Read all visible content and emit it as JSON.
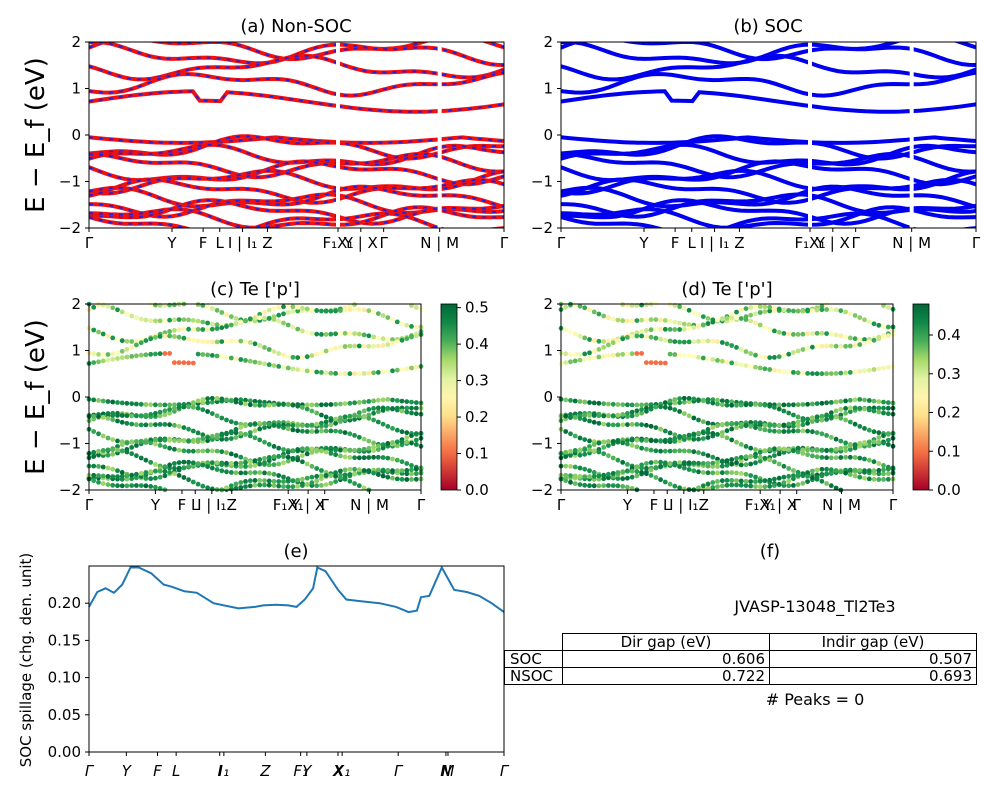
{
  "panels": {
    "a": {
      "title": "(a) Non-SOC"
    },
    "b": {
      "title": "(b) SOC"
    },
    "c": {
      "title": "(c)  Te ['p']"
    },
    "d": {
      "title": "(d) Te ['p']"
    },
    "e": {
      "title": "(e)"
    },
    "f": {
      "title": "(f)"
    }
  },
  "y_axis_label": "E − E_f (eV)",
  "band_ticks": {
    "y": [
      "2",
      "1",
      "0",
      "−1",
      "−2"
    ],
    "kpath_ab": [
      "Γ",
      "Y",
      "F",
      "L",
      "I | I₁",
      "Z",
      "F₁X₁",
      "Y | X",
      "Γ",
      "N | M",
      "Γ"
    ],
    "kpath_cd": [
      "Γ",
      "Y",
      "F",
      "L",
      "I | I₁",
      "Z",
      "F₁X₁",
      "Y | X",
      "Γ",
      "N | M",
      "Γ"
    ]
  },
  "colorbar_c": {
    "ticks": [
      "0.0",
      "0.1",
      "0.2",
      "0.3",
      "0.4",
      "0.5"
    ],
    "max": 0.51
  },
  "colorbar_d": {
    "ticks": [
      "0.0",
      "0.1",
      "0.2",
      "0.3",
      "0.4"
    ],
    "max": 0.48
  },
  "colors": {
    "nonsoc_line": "#ee1111",
    "nonsoc_dash": "#2222dd",
    "soc_line": "#0000ee",
    "spillage_line": "#1f77b4"
  },
  "spillage": {
    "ylabel": "SOC spillage (chg. den. unit)",
    "yticks": [
      "0.20",
      "0.15",
      "0.10",
      "0.05",
      "0.00"
    ],
    "xticks": [
      "Γ",
      "Y",
      "F",
      "L",
      "I",
      "I₁",
      "Z",
      "F₁",
      "Y",
      "X",
      "X₁",
      "Γ",
      "N",
      "M",
      "Γ"
    ]
  },
  "info": {
    "jid": "JVASP-13048_Tl2Te3",
    "peaks": "# Peaks = 0",
    "table": {
      "headers": [
        "Dir gap (eV)",
        "Indir gap (eV)"
      ],
      "rows": [
        {
          "label": "SOC",
          "dir": "0.606",
          "indir": "0.507"
        },
        {
          "label": "NSOC",
          "dir": "0.722",
          "indir": "0.693"
        }
      ]
    }
  },
  "chart_data": [
    {
      "type": "line",
      "panel": "(a) Non-SOC",
      "ylim": [
        -2,
        2
      ],
      "ylabel": "E − E_f (eV)",
      "xticks": [
        "Γ",
        "Y",
        "F",
        "L",
        "I | I₁",
        "Z",
        "F₁X₁",
        "Y | X",
        "Γ",
        "N | M",
        "Γ"
      ],
      "series": [
        {
          "values_at_start": [
            1.88,
            1.75,
            1.45,
            1.1,
            0.75,
            -0.05,
            -0.25,
            -0.45,
            -0.65,
            -0.8,
            -1.0,
            -1.2,
            -1.35,
            -1.5,
            -1.65,
            -1.8,
            -1.9
          ]
        }
      ]
    },
    {
      "type": "line",
      "panel": "(b) SOC",
      "ylim": [
        -2,
        2
      ],
      "xticks": [
        "Γ",
        "Y",
        "F",
        "L",
        "I | I₁",
        "Z",
        "F₁X₁",
        "Y | X",
        "Γ",
        "N | M",
        "Γ"
      ],
      "series": [
        {
          "values_at_start": [
            1.88,
            1.75,
            1.45,
            1.1,
            0.75,
            -0.05,
            -0.25,
            -0.45,
            -0.65,
            -0.8,
            -1.0,
            -1.2,
            -1.35,
            -1.5,
            -1.65,
            -1.8,
            -1.9
          ]
        }
      ]
    },
    {
      "type": "scatter",
      "panel": "(c)  Te ['p']",
      "ylim": [
        -2,
        2
      ],
      "colorbar": [
        0.0,
        0.51
      ]
    },
    {
      "type": "scatter",
      "panel": "(d) Te ['p']",
      "ylim": [
        -2,
        2
      ],
      "colorbar": [
        0.0,
        0.48
      ]
    },
    {
      "type": "line",
      "panel": "(e)",
      "ylabel": "SOC spillage (chg. den. unit)",
      "ylim": [
        0.0,
        0.25
      ],
      "x": [
        0,
        0.02,
        0.04,
        0.06,
        0.08,
        0.1,
        0.12,
        0.15,
        0.18,
        0.2,
        0.23,
        0.26,
        0.3,
        0.36,
        0.4,
        0.42,
        0.45,
        0.48,
        0.5,
        0.52,
        0.54,
        0.55,
        0.57,
        0.6,
        0.62,
        0.65,
        0.7,
        0.74,
        0.77,
        0.79,
        0.8,
        0.82,
        0.85,
        0.88,
        0.91,
        0.94,
        0.97,
        1.0
      ],
      "y": [
        0.195,
        0.215,
        0.22,
        0.214,
        0.225,
        0.248,
        0.248,
        0.24,
        0.225,
        0.222,
        0.216,
        0.214,
        0.2,
        0.193,
        0.195,
        0.197,
        0.198,
        0.197,
        0.195,
        0.205,
        0.22,
        0.248,
        0.243,
        0.218,
        0.205,
        0.203,
        0.2,
        0.195,
        0.188,
        0.19,
        0.208,
        0.21,
        0.248,
        0.218,
        0.215,
        0.21,
        0.2,
        0.188
      ]
    }
  ]
}
